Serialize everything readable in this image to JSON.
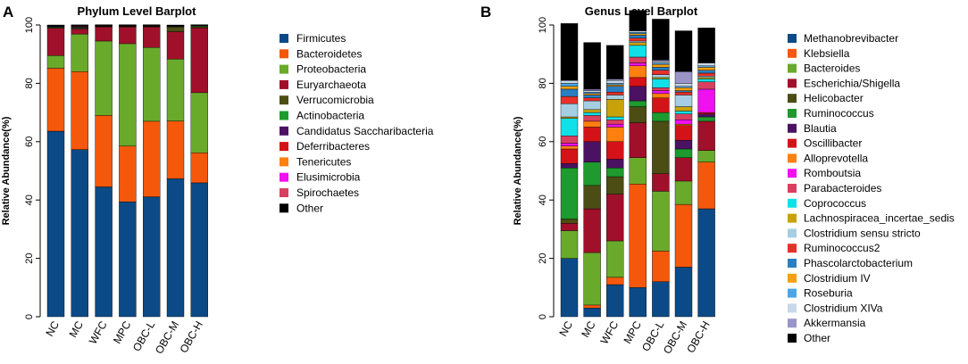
{
  "panels": {
    "A": {
      "letter": "A"
    },
    "B": {
      "letter": "B"
    }
  },
  "chart_data": [
    {
      "type": "bar",
      "stacked": true,
      "panel": "A",
      "title": "Phylum Level Barplot",
      "xlabel": "",
      "ylabel": "Relative Abundance(%)",
      "ylim": [
        0,
        100
      ],
      "yticks": [
        0,
        20,
        40,
        60,
        80,
        100
      ],
      "grid": false,
      "legend_position": "right",
      "categories": [
        "NC",
        "MC",
        "WFC",
        "MPC",
        "OBC-L",
        "OBC-M",
        "OBC-H"
      ],
      "series": [
        {
          "name": "Firmicutes",
          "color": "#0b4a86",
          "values": [
            63.6,
            57.3,
            44.5,
            39.4,
            41.1,
            47.3,
            45.9
          ]
        },
        {
          "name": "Bacteroidetes",
          "color": "#f5580b",
          "values": [
            21.6,
            26.7,
            24.5,
            19.1,
            25.9,
            19.8,
            10.3
          ]
        },
        {
          "name": "Proteobacteria",
          "color": "#6aaa2b",
          "values": [
            4.3,
            12.9,
            25.5,
            35.1,
            25.3,
            21.2,
            20.6
          ]
        },
        {
          "name": "Euryarchaeota",
          "color": "#a0102a",
          "values": [
            9.4,
            1.7,
            4.8,
            5.7,
            7.0,
            9.4,
            22.2
          ]
        },
        {
          "name": "Verrucomicrobia",
          "color": "#4b4d14",
          "values": [
            0.3,
            0.4,
            0.2,
            0.2,
            0.2,
            1.6,
            0.4
          ]
        },
        {
          "name": "Actinobacteria",
          "color": "#1e9a2e",
          "values": [
            0.2,
            0.2,
            0.1,
            0.1,
            0.1,
            0.2,
            0.3
          ]
        },
        {
          "name": "Candidatus Saccharibacteria",
          "color": "#4b1162",
          "values": [
            0.2,
            0.3,
            0.1,
            0.1,
            0.1,
            0.1,
            0.1
          ]
        },
        {
          "name": "Deferribacteres",
          "color": "#d41318",
          "values": [
            0.1,
            0.2,
            0.1,
            0.1,
            0.1,
            0.1,
            0.1
          ]
        },
        {
          "name": "Tenericutes",
          "color": "#ff7f0f",
          "values": [
            0.1,
            0.1,
            0.1,
            0.1,
            0.1,
            0.1,
            0.05
          ]
        },
        {
          "name": "Elusimicrobia",
          "color": "#f010f0",
          "values": [
            0.05,
            0.05,
            0.05,
            0.05,
            0.05,
            0.05,
            0.05
          ]
        },
        {
          "name": "Spirochaetes",
          "color": "#d94060",
          "values": [
            0.05,
            0.05,
            0.05,
            0.05,
            0.05,
            0.05,
            0.05
          ]
        },
        {
          "name": "Other",
          "color": "#000000",
          "values": [
            0.1,
            0.15,
            0.1,
            0.1,
            0.1,
            0.1,
            0.05
          ]
        }
      ]
    },
    {
      "type": "bar",
      "stacked": true,
      "panel": "B",
      "title": "Genus Level Barplot",
      "xlabel": "",
      "ylabel": "Relative Abundance(%)",
      "ylim": [
        0,
        100
      ],
      "yticks": [
        0,
        20,
        40,
        60,
        80,
        100
      ],
      "grid": false,
      "legend_position": "right",
      "categories": [
        "NC",
        "MC",
        "WFC",
        "MPC",
        "OBC-L",
        "OBC-M",
        "OBC-H"
      ],
      "series": [
        {
          "name": "Methanobrevibacter",
          "color": "#0b4a86",
          "values": [
            20,
            3,
            11,
            10,
            12,
            17,
            37
          ]
        },
        {
          "name": "Klebsiella",
          "color": "#f5580b",
          "values": [
            0,
            1,
            2.5,
            35.5,
            10.5,
            21.5,
            16
          ]
        },
        {
          "name": "Bacteroides",
          "color": "#6aaa2b",
          "values": [
            9.5,
            18,
            12.5,
            9,
            20.5,
            8,
            4
          ]
        },
        {
          "name": "Escherichia/Shigella",
          "color": "#a0102a",
          "values": [
            2.5,
            15,
            16,
            12,
            6,
            8,
            10
          ]
        },
        {
          "name": "Helicobacter",
          "color": "#4b4d14",
          "values": [
            1.5,
            8,
            6,
            5.5,
            18,
            0,
            0
          ]
        },
        {
          "name": "Ruminococcus",
          "color": "#1e9a2e",
          "values": [
            17.5,
            8,
            3,
            2,
            3,
            3,
            1.5
          ]
        },
        {
          "name": "Blautia",
          "color": "#4b1162",
          "values": [
            1.5,
            7,
            3,
            5,
            0,
            3,
            1
          ]
        },
        {
          "name": "Oscillibacter",
          "color": "#d41318",
          "values": [
            5,
            5,
            6,
            3,
            5,
            5,
            0.5
          ]
        },
        {
          "name": "Alloprevotella",
          "color": "#ff7f0f",
          "values": [
            1,
            2,
            5,
            4,
            1.5,
            0.5,
            0
          ]
        },
        {
          "name": "Romboutsia",
          "color": "#f010f0",
          "values": [
            1,
            0,
            1,
            1,
            1,
            1.5,
            8
          ]
        },
        {
          "name": "Parabacteroides",
          "color": "#d94060",
          "values": [
            2.5,
            2,
            1.5,
            2,
            1,
            2,
            2.5
          ]
        },
        {
          "name": "Coprococcus",
          "color": "#10e0e8",
          "values": [
            6,
            1,
            1,
            4,
            3,
            1,
            1
          ]
        },
        {
          "name": "Lachnospiracea_incertae_sedis",
          "color": "#c8a20a",
          "values": [
            0.5,
            1,
            6,
            1,
            0.5,
            1.5,
            0.5
          ]
        },
        {
          "name": "Clostridium sensu stricto",
          "color": "#a6cee3",
          "values": [
            4.5,
            3,
            1.5,
            0.5,
            1,
            4,
            0.5
          ]
        },
        {
          "name": "Ruminococcus2",
          "color": "#e8302a",
          "values": [
            2.5,
            1,
            1,
            1,
            1.5,
            1,
            1
          ]
        },
        {
          "name": "Phascolarctobacterium",
          "color": "#2a7fc0",
          "values": [
            2.5,
            1,
            2,
            1,
            1,
            0.5,
            1
          ]
        },
        {
          "name": "Clostridium IV",
          "color": "#f5a00a",
          "values": [
            1,
            0.5,
            0.5,
            0.5,
            1,
            1,
            1
          ]
        },
        {
          "name": "Roseburia",
          "color": "#4aa6e8",
          "values": [
            1,
            0.5,
            0.5,
            0.5,
            0.5,
            0.5,
            0.5
          ]
        },
        {
          "name": "Clostridium XIVa",
          "color": "#c8d8e8",
          "values": [
            1,
            0.5,
            1,
            0.5,
            0.5,
            1,
            1
          ]
        },
        {
          "name": "Akkermansia",
          "color": "#9b94c8",
          "values": [
            0,
            0.5,
            0.5,
            0,
            0.5,
            4,
            0
          ]
        },
        {
          "name": "Other",
          "color": "#000000",
          "values": [
            19.5,
            16,
            11.5,
            7,
            14,
            14,
            12
          ]
        }
      ]
    }
  ]
}
